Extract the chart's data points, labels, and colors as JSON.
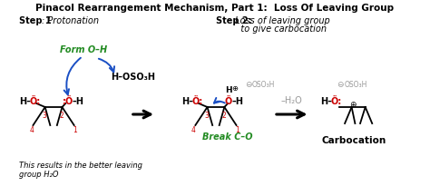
{
  "title": "Pinacol Rearrangement Mechanism, Part 1:  Loss Of Leaving Group",
  "step1_bold": "Step 1",
  "step1_italic": ": Protonation",
  "step2_bold": "Step 2:",
  "step2_italic1": " Loss of leaving group",
  "step2_italic2": "   to give carbocation",
  "form_oh": "Form O–H",
  "break_co": "Break C–O",
  "minus_h2o": "–H₂O",
  "carbocation": "Carbocation",
  "italic_note1": "This results in the better leaving",
  "italic_note2": "group H₂O",
  "bg_color": "#ffffff",
  "black": "#000000",
  "red": "#cc0000",
  "green": "#228B22",
  "blue": "#1a4fc4",
  "gray": "#999999"
}
